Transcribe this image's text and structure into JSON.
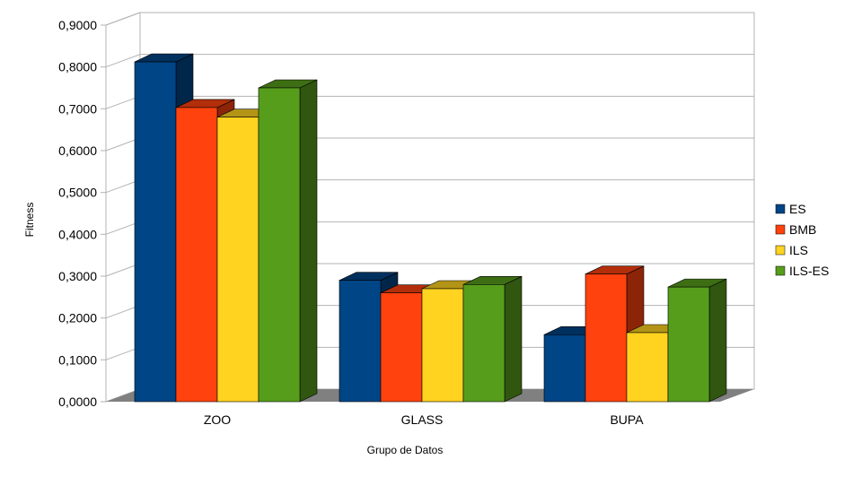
{
  "chart_data": {
    "type": "bar",
    "style": "3d-clustered",
    "xlabel": "Grupo de Datos",
    "ylabel": "Fitness",
    "categories": [
      "ZOO",
      "GLASS",
      "BUPA"
    ],
    "series": [
      {
        "name": "ES",
        "color": "#004586",
        "values": [
          0.812,
          0.29,
          0.16
        ]
      },
      {
        "name": "BMB",
        "color": "#FF420E",
        "values": [
          0.703,
          0.26,
          0.305
        ]
      },
      {
        "name": "ILS",
        "color": "#FFD320",
        "values": [
          0.68,
          0.27,
          0.165
        ]
      },
      {
        "name": "ILS-ES",
        "color": "#579D1C",
        "values": [
          0.75,
          0.28,
          0.274
        ]
      }
    ],
    "ylim": [
      0,
      0.9
    ],
    "yticks": [
      "0,0000",
      "0,1000",
      "0,2000",
      "0,3000",
      "0,4000",
      "0,5000",
      "0,6000",
      "0,7000",
      "0,8000",
      "0,9000"
    ],
    "grid": true,
    "legend_position": "right"
  }
}
